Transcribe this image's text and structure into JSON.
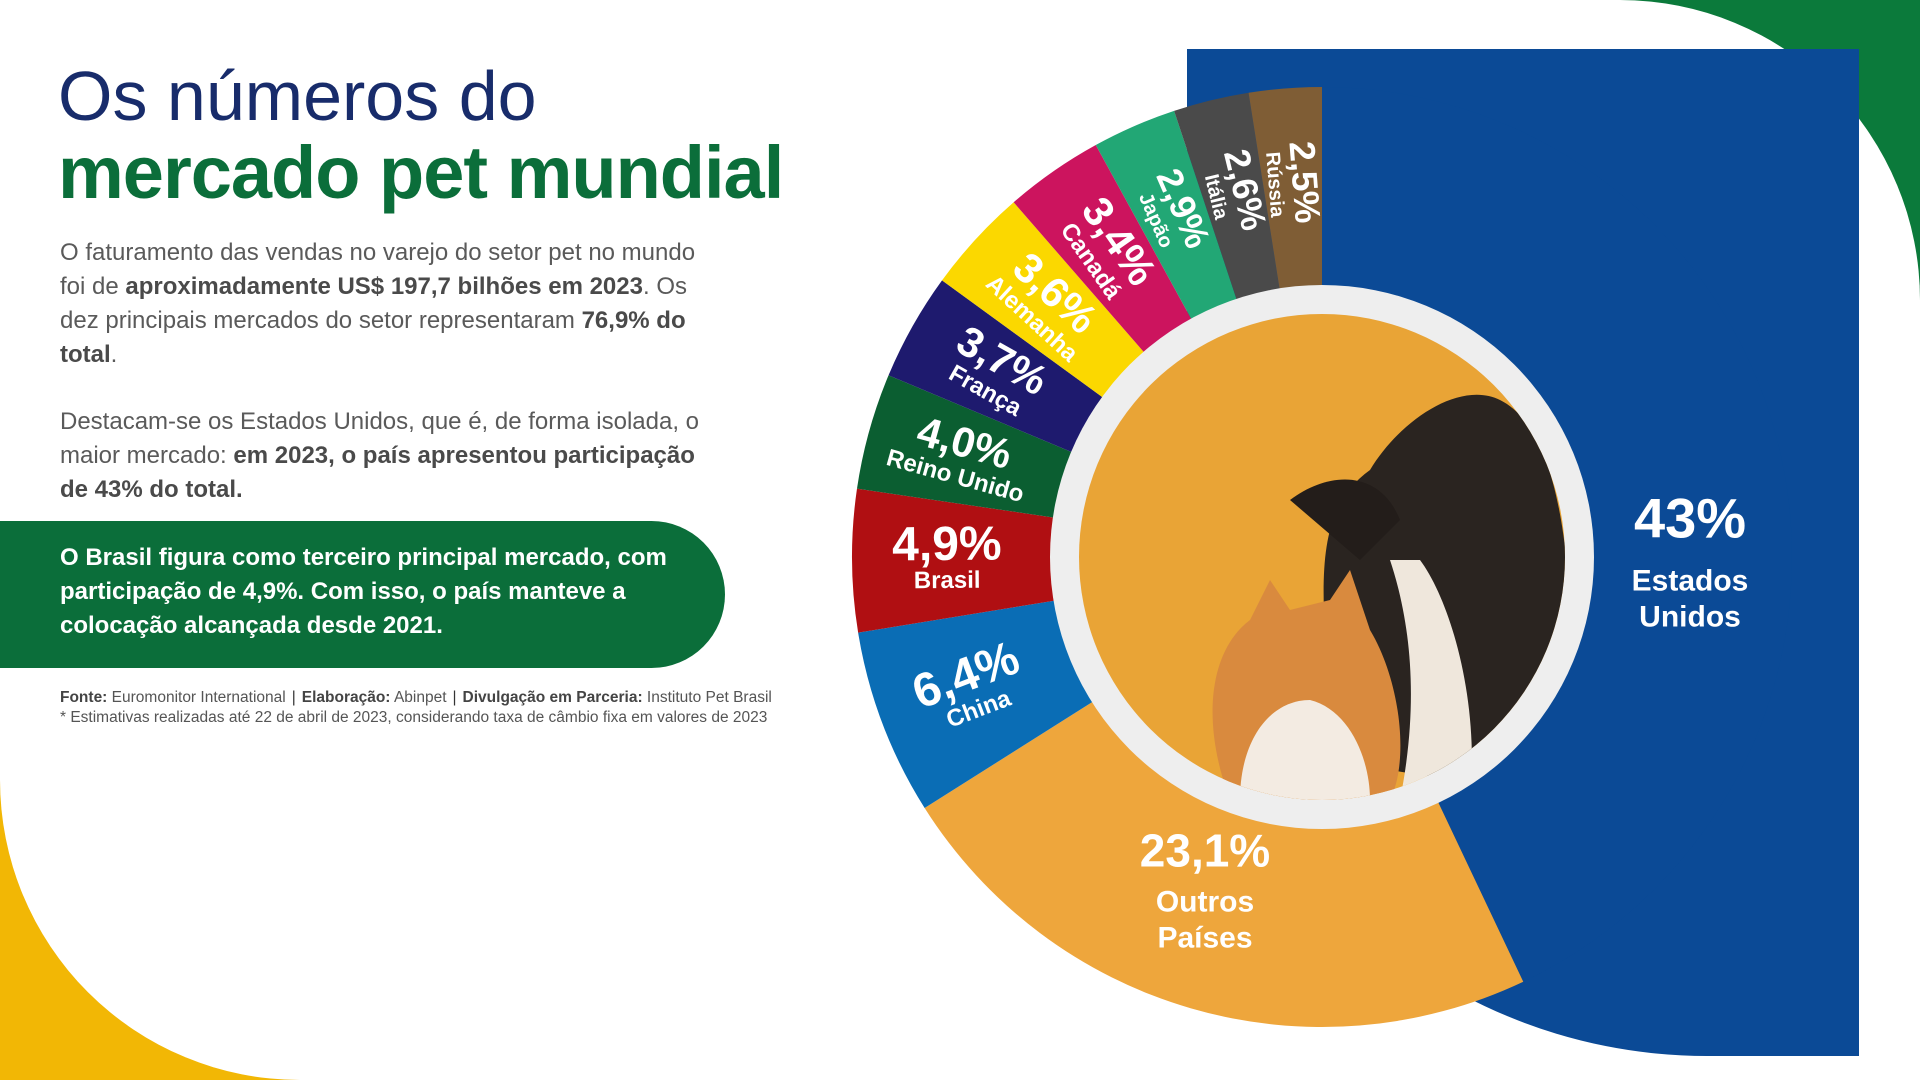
{
  "header": {
    "title_line1": "Os números do",
    "title_line2": "mercado pet mundial"
  },
  "body": {
    "p1_a": "O faturamento das vendas no varejo do setor pet no mundo foi de ",
    "p1_b": "aproximadamente US$ 197,7 bilhões em 2023",
    "p1_c": ". Os dez principais mercados do setor representaram ",
    "p1_d": "76,9% do total",
    "p1_e": ".",
    "p2_a": "Destacam-se os Estados Unidos, que é, de forma isolada, o maior mercado: ",
    "p2_b": "em 2023, o país apresentou participação de 43% do total."
  },
  "highlight": "O Brasil figura como terceiro principal mercado, com participação de 4,9%. Com isso, o país manteve a colocação alcançada desde 2021.",
  "footer": {
    "fonte_label": "Fonte:",
    "fonte": "Euromonitor International",
    "elab_label": "Elaboração:",
    "elab": "Abinpet",
    "div_label": "Divulgação em Parceria:",
    "div": "Instituto Pet Brasil",
    "note": "* Estimativas realizadas até 22 de abril de 2023, considerando taxa de câmbio fixa em valores de 2023"
  },
  "chart_data": {
    "type": "pie",
    "donut": true,
    "unit": "%",
    "slices": [
      {
        "label": "Estados Unidos",
        "value_label": "43%",
        "value": 43,
        "color": "#0b4a96"
      },
      {
        "label": "Outros Países",
        "value_label": "23,1%",
        "value": 23.1,
        "color": "#eea63c"
      },
      {
        "label": "China",
        "value_label": "6,4%",
        "value": 6.4,
        "color": "#0a6db5"
      },
      {
        "label": "Brasil",
        "value_label": "4,9%",
        "value": 4.9,
        "color": "#b00f12"
      },
      {
        "label": "Reino Unido",
        "value_label": "4,0%",
        "value": 4.0,
        "color": "#0b5e31"
      },
      {
        "label": "França",
        "value_label": "3,7%",
        "value": 3.7,
        "color": "#1e1a6e"
      },
      {
        "label": "Alemanha",
        "value_label": "3,6%",
        "value": 3.6,
        "color": "#fbd800"
      },
      {
        "label": "Canadá",
        "value_label": "3,4%",
        "value": 3.4,
        "color": "#cc145e"
      },
      {
        "label": "Japão",
        "value_label": "2,9%",
        "value": 2.9,
        "color": "#22a775"
      },
      {
        "label": "Itália",
        "value_label": "2,6%",
        "value": 2.6,
        "color": "#4a4a4a"
      },
      {
        "label": "Rússia",
        "value_label": "2,5%",
        "value": 2.5,
        "color": "#7f5d35"
      }
    ]
  }
}
